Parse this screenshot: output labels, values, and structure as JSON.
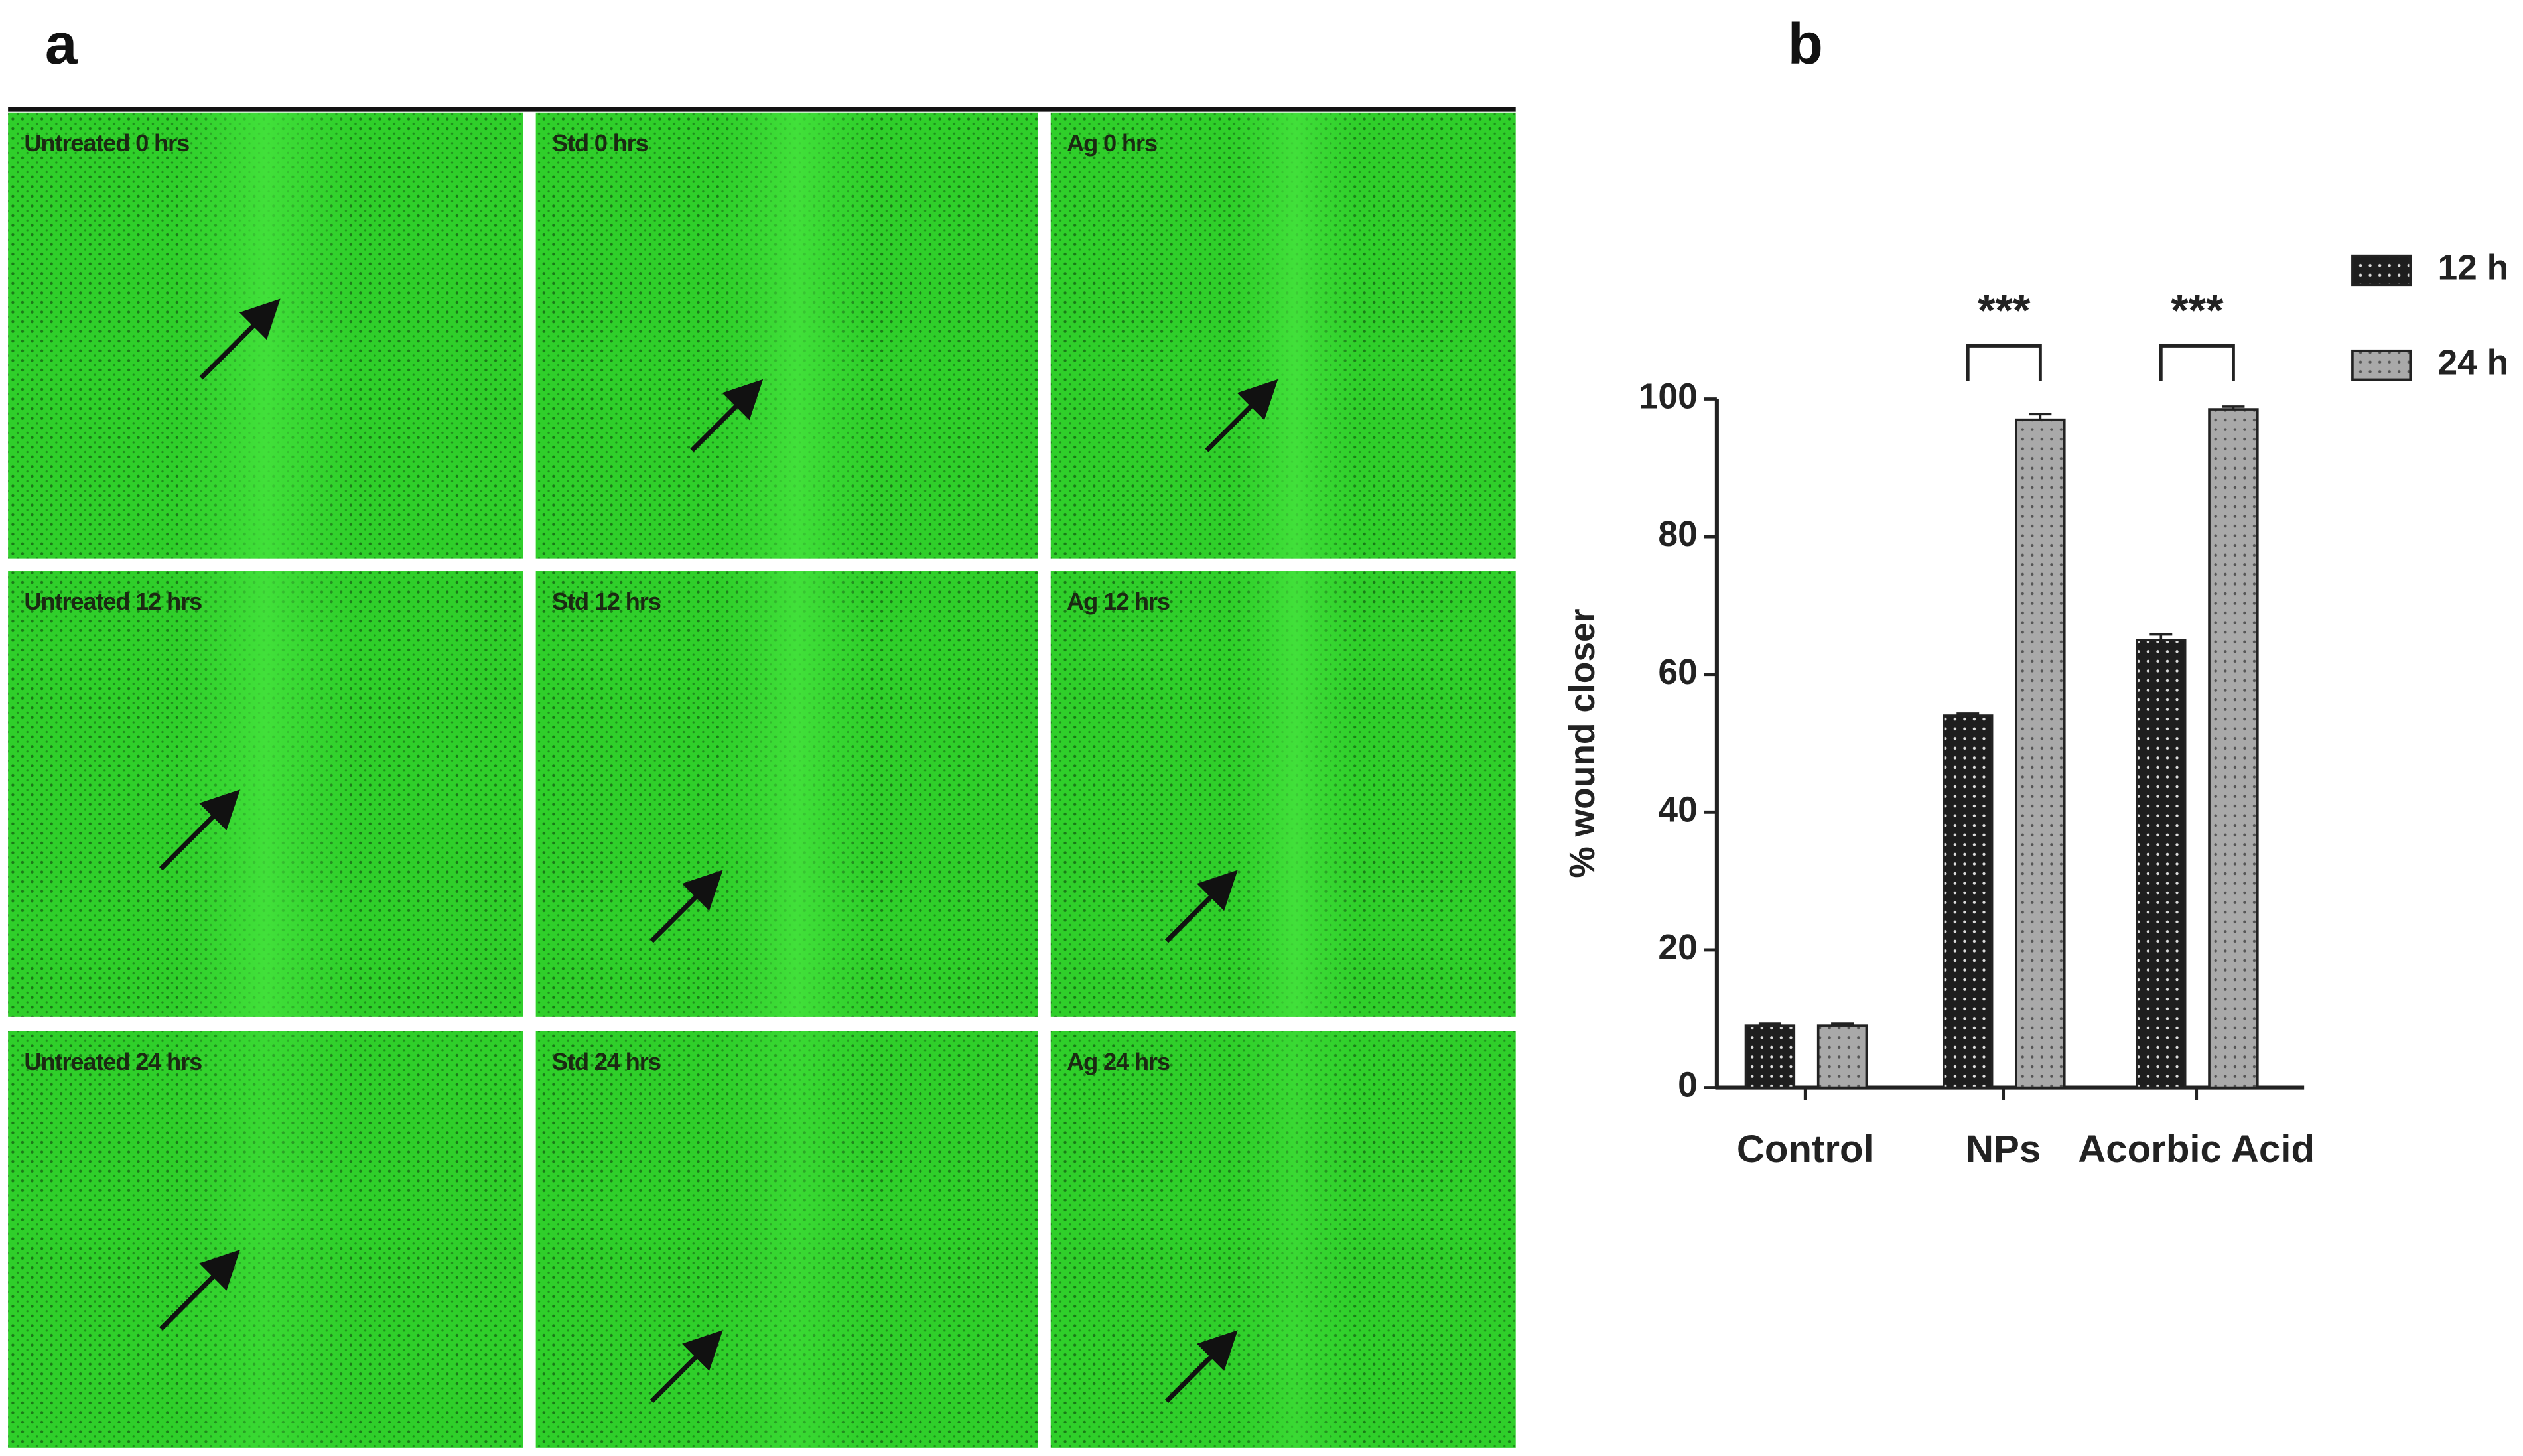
{
  "panel_labels": [
    "a",
    "b"
  ],
  "images": {
    "labels": [
      "Untreated 0 hrs",
      "Std 0 hrs",
      "Ag 0 hrs",
      "Untreated 12 hrs",
      "Std 12 hrs",
      "Ag 12 hrs",
      "Untreated 24 hrs",
      "Std 24 hrs",
      "Ag 24 hrs"
    ]
  },
  "chart_data": {
    "type": "bar",
    "ylabel": "% wound closer",
    "categories": [
      "Control",
      "NPs",
      "Acorbic Acid"
    ],
    "series": [
      {
        "name": "12 h",
        "color": "#1e1e1e",
        "values": [
          9,
          54,
          65
        ],
        "errors": [
          0.3,
          0.3,
          0.8
        ]
      },
      {
        "name": "24 h",
        "color": "#a9a9a9",
        "values": [
          9,
          97,
          98.5
        ],
        "errors": [
          0.3,
          0.8,
          0.4
        ]
      }
    ],
    "ylim": [
      0,
      100
    ],
    "yticks": [
      0,
      20,
      40,
      60,
      80,
      100
    ],
    "annotations": [
      {
        "category": "NPs",
        "text": "***"
      },
      {
        "category": "Acorbic Acid",
        "text": "***"
      }
    ],
    "legend": "upper right"
  }
}
